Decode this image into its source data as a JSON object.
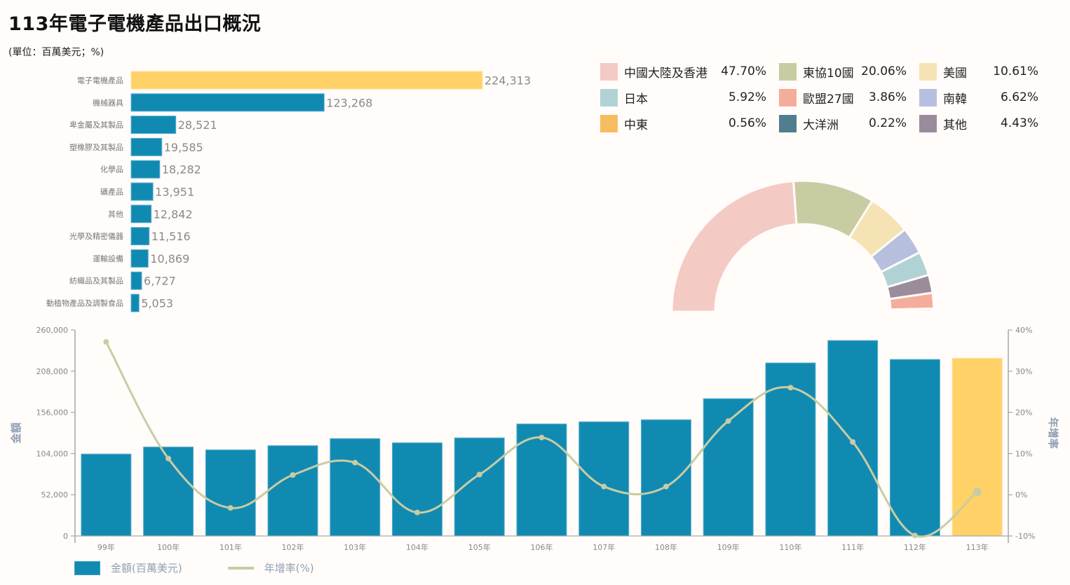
{
  "header": {
    "title": "113年電子電機產品出口概況",
    "subtitle": "(單位：百萬美元；%)"
  },
  "colors": {
    "highlight": "#ffd166",
    "primary": "#118ab2",
    "line": "#c9cca3",
    "axis": "#888888",
    "axis_title": "#8fa0b3"
  },
  "chart_data": [
    {
      "type": "bar",
      "orientation": "horizontal",
      "title": "",
      "categories": [
        "電子電機產品",
        "機械器具",
        "卑金屬及其製品",
        "塑橡膠及其製品",
        "化學品",
        "礦產品",
        "其他",
        "光學及精密儀器",
        "運輸設備",
        "紡織品及其製品",
        "動植物產品及調製食品"
      ],
      "values": [
        224313,
        123268,
        28521,
        19585,
        18282,
        13951,
        12842,
        11516,
        10869,
        6727,
        5053
      ],
      "value_labels": [
        "224,313",
        "123,268",
        "28,521",
        "19,585",
        "18,282",
        "13,951",
        "12,842",
        "11,516",
        "10,869",
        "6,727",
        "5,053"
      ],
      "highlight_index": 0
    },
    {
      "type": "pie",
      "style": "semi-donut",
      "title": "",
      "legend": [
        {
          "label": "中國大陸及香港",
          "value": 47.7,
          "display": "47.70%",
          "color": "#f4cac5"
        },
        {
          "label": "東協10國",
          "value": 20.06,
          "display": "20.06%",
          "color": "#c9cca3"
        },
        {
          "label": "美國",
          "value": 10.61,
          "display": "10.61%",
          "color": "#f6e3b4"
        },
        {
          "label": "日本",
          "value": 5.92,
          "display": "5.92%",
          "color": "#b1d2d5"
        },
        {
          "label": "歐盟27國",
          "value": 3.86,
          "display": "3.86%",
          "color": "#f5ad9b"
        },
        {
          "label": "南韓",
          "value": 6.62,
          "display": "6.62%",
          "color": "#b7bfde"
        },
        {
          "label": "中東",
          "value": 0.56,
          "display": "0.56%",
          "color": "#f6bd60"
        },
        {
          "label": "大洋洲",
          "value": 0.22,
          "display": "0.22%",
          "color": "#507e8e"
        },
        {
          "label": "其他",
          "value": 4.43,
          "display": "4.43%",
          "color": "#9b8c9b"
        }
      ],
      "slice_order": [
        "中國大陸及香港",
        "東協10國",
        "美國",
        "南韓",
        "日本",
        "其他",
        "歐盟27國",
        "中東",
        "大洋洲"
      ]
    },
    {
      "type": "bar+line",
      "title": "",
      "x": [
        "99年",
        "100年",
        "101年",
        "102年",
        "103年",
        "104年",
        "105年",
        "106年",
        "107年",
        "108年",
        "109年",
        "110年",
        "111年",
        "112年",
        "113年"
      ],
      "series": [
        {
          "name": "金額(百萬美元)",
          "type": "bar",
          "axis": "left",
          "values": [
            103400,
            112300,
            108700,
            114000,
            122900,
            117600,
            123800,
            141400,
            144100,
            146700,
            173300,
            218400,
            246700,
            222800,
            224313
          ]
        },
        {
          "name": "年增率(%)",
          "type": "line",
          "axis": "right",
          "values": [
            37.1,
            8.8,
            -3.2,
            4.8,
            7.8,
            -4.3,
            4.9,
            13.9,
            2.0,
            2.0,
            17.9,
            26.0,
            12.8,
            -9.9,
            0.7
          ]
        }
      ],
      "highlight_index": 14,
      "ylabel_left": "金額",
      "ylabel_right": "年增率",
      "ylim_left": [
        0,
        260000
      ],
      "yticks_left": [
        "0",
        "52,000",
        "104,000",
        "156,000",
        "208,000",
        "260,000"
      ],
      "ytick_values_left": [
        0,
        52000,
        104000,
        156000,
        208000,
        260000
      ],
      "ylim_right": [
        -10,
        40
      ],
      "yticks_right": [
        "-10%",
        "0%",
        "10%",
        "20%",
        "30%",
        "40%"
      ],
      "ytick_values_right": [
        -10,
        0,
        10,
        20,
        30,
        40
      ],
      "legend_position": "bottom-left",
      "grid": false
    }
  ]
}
